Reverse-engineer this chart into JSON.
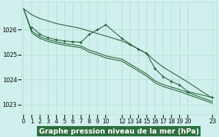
{
  "background_color": "#cff0ec",
  "grid_color": "#b8dbd6",
  "line_color": "#1e5c30",
  "marker_color": "#1e5c30",
  "title": "Graphe pression niveau de la mer (hPa)",
  "ylim": [
    1022.6,
    1027.1
  ],
  "yticks": [
    1023,
    1024,
    1025,
    1026
  ],
  "xticks": [
    0,
    1,
    2,
    3,
    4,
    5,
    6,
    7,
    8,
    9,
    10,
    12,
    13,
    14,
    15,
    16,
    17,
    18,
    19,
    20,
    23
  ],
  "xlim": [
    -0.3,
    23.5
  ],
  "series": [
    {
      "x": [
        0,
        1,
        2,
        3,
        4,
        5,
        6,
        7,
        8,
        9,
        10,
        12,
        13,
        14,
        15,
        16,
        17,
        18,
        19,
        20,
        23
      ],
      "y": [
        1026.85,
        1026.6,
        1026.45,
        1026.35,
        1026.25,
        1026.18,
        1026.12,
        1026.05,
        1025.95,
        1025.85,
        1025.75,
        1025.55,
        1025.4,
        1025.22,
        1025.05,
        1024.75,
        1024.5,
        1024.3,
        1024.1,
        1023.9,
        1023.25
      ],
      "has_markers": false
    },
    {
      "x": [
        1,
        2,
        3,
        4,
        5,
        6,
        7,
        8,
        9,
        10,
        12,
        13,
        14,
        15,
        16,
        17,
        18,
        19,
        20,
        23
      ],
      "y": [
        1026.1,
        1025.82,
        1025.68,
        1025.6,
        1025.55,
        1025.52,
        1025.5,
        1025.82,
        1026.0,
        1026.2,
        1025.65,
        1025.42,
        1025.22,
        1025.05,
        1024.44,
        1024.12,
        1023.93,
        1023.78,
        1023.52,
        1023.28
      ],
      "has_markers": true
    },
    {
      "x": [
        0,
        1,
        2,
        3,
        4,
        5,
        6,
        7,
        8,
        9,
        10,
        12,
        13,
        14,
        15,
        16,
        17,
        18,
        19,
        20,
        23
      ],
      "y": [
        1026.85,
        1025.95,
        1025.72,
        1025.6,
        1025.52,
        1025.45,
        1025.4,
        1025.35,
        1025.18,
        1025.08,
        1024.95,
        1024.82,
        1024.62,
        1024.42,
        1024.22,
        1023.95,
        1023.8,
        1023.7,
        1023.6,
        1023.48,
        1023.12
      ],
      "has_markers": false
    },
    {
      "x": [
        0,
        1,
        2,
        3,
        4,
        5,
        6,
        7,
        8,
        9,
        10,
        12,
        13,
        14,
        15,
        16,
        17,
        18,
        19,
        20,
        23
      ],
      "y": [
        1026.85,
        1025.88,
        1025.65,
        1025.53,
        1025.45,
        1025.38,
        1025.33,
        1025.28,
        1025.1,
        1025.0,
        1024.87,
        1024.74,
        1024.54,
        1024.34,
        1024.14,
        1023.87,
        1023.72,
        1023.62,
        1023.52,
        1023.4,
        1023.05
      ],
      "has_markers": false
    }
  ],
  "title_fontsize": 7.5,
  "tick_fontsize": 6,
  "title_bg": "#2d6e3e",
  "title_fg": "#ffffff"
}
